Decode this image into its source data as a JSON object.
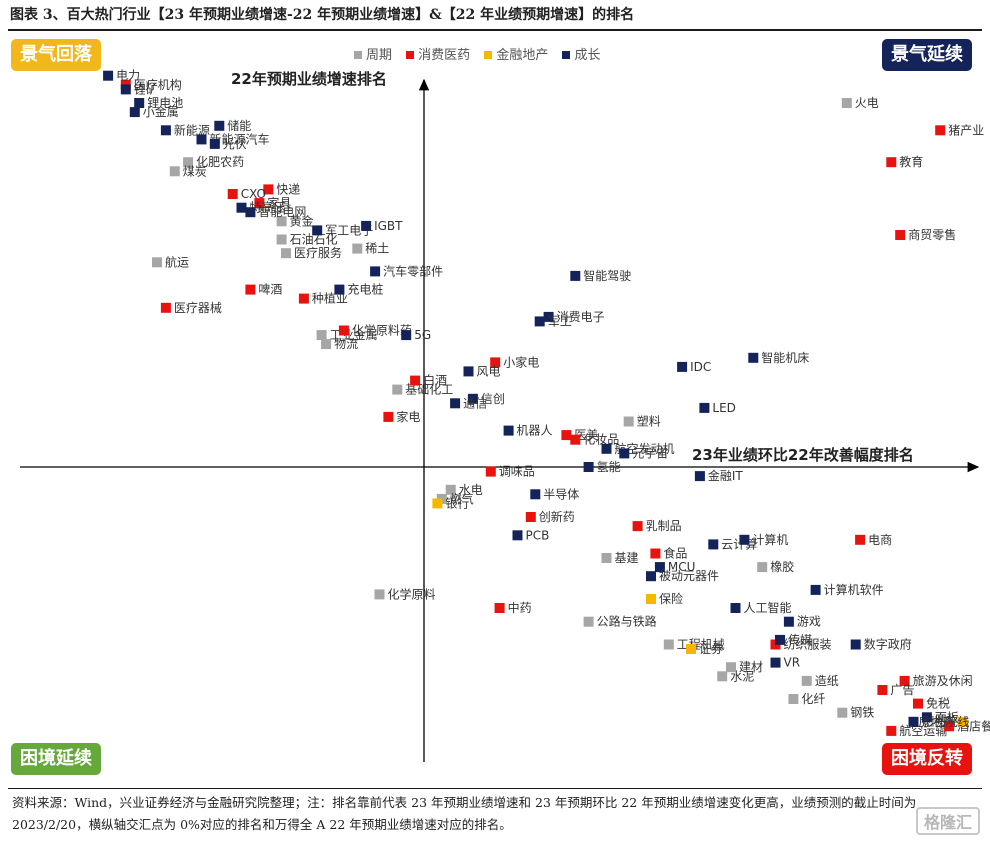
{
  "title": "图表 3、百大热门行业【23 年预期业绩增速-22 年预期业绩增速】&【22 年业绩预期增速】的排名",
  "quadrants": {
    "top_left": "景气回落",
    "top_right": "景气延续",
    "bottom_left": "困境延续",
    "bottom_right": "困境反转"
  },
  "legend": [
    {
      "name": "周期",
      "color": "#a6a6a6"
    },
    {
      "name": "消费医药",
      "color": "#e8130e"
    },
    {
      "name": "金融地产",
      "color": "#f5b800"
    },
    {
      "name": "成长",
      "color": "#14235a"
    }
  ],
  "footnote": "资料来源：Wind，兴业证券经济与金融研究院整理；注：排名靠前代表 23 年预期业绩增速和 23 年预期环比 22 年预期业绩增速变化更高，业绩预测的截止时间为 2023/2/20，横纵轴交汇点为 0%对应的排名和万得全 A 22 年预期业绩增速对应的排名。",
  "watermark": "格隆汇",
  "chart_data": {
    "type": "scatter",
    "title": "",
    "xlabel": "23年业绩环比22年改善幅度排名",
    "ylabel": "22年预期业绩增速排名",
    "xlim": [
      -100,
      130
    ],
    "ylim": [
      -100,
      100
    ],
    "grid": false,
    "legend_position": "top-center",
    "series": [
      {
        "name": "周期",
        "points": [
          {
            "label": "火电",
            "x": 95,
            "y": 80
          },
          {
            "label": "化肥农药",
            "x": -53,
            "y": 67
          },
          {
            "label": "煤炭",
            "x": -56,
            "y": 65
          },
          {
            "label": "黄金",
            "x": -32,
            "y": 54
          },
          {
            "label": "石油石化",
            "x": -32,
            "y": 50
          },
          {
            "label": "医疗服务",
            "x": -31,
            "y": 47
          },
          {
            "label": "稀土",
            "x": -15,
            "y": 48
          },
          {
            "label": "航运",
            "x": -60,
            "y": 45
          },
          {
            "label": "工业金属",
            "x": -23,
            "y": 29
          },
          {
            "label": "物流",
            "x": -22,
            "y": 27
          },
          {
            "label": "基础化工",
            "x": -6,
            "y": 17
          },
          {
            "label": "塑料",
            "x": 46,
            "y": 10
          },
          {
            "label": "水电",
            "x": 6,
            "y": -5
          },
          {
            "label": "燃气",
            "x": 4,
            "y": -7
          },
          {
            "label": "基建",
            "x": 41,
            "y": -20
          },
          {
            "label": "化学原料",
            "x": -10,
            "y": -28
          },
          {
            "label": "公路与铁路",
            "x": 37,
            "y": -34
          },
          {
            "label": "工程机械",
            "x": 55,
            "y": -39
          },
          {
            "label": "橡胶",
            "x": 76,
            "y": -22
          },
          {
            "label": "水泥",
            "x": 67,
            "y": -46
          },
          {
            "label": "建材",
            "x": 69,
            "y": -44
          },
          {
            "label": "造纸",
            "x": 86,
            "y": -47
          },
          {
            "label": "化纤",
            "x": 83,
            "y": -51
          },
          {
            "label": "钢铁",
            "x": 94,
            "y": -54
          }
        ]
      },
      {
        "name": "消费医药",
        "points": [
          {
            "label": "医疗机构",
            "x": -67,
            "y": 84
          },
          {
            "label": "猪产业",
            "x": 116,
            "y": 74
          },
          {
            "label": "教育",
            "x": 105,
            "y": 67
          },
          {
            "label": "快递",
            "x": -35,
            "y": 61
          },
          {
            "label": "CXO",
            "x": -43,
            "y": 60
          },
          {
            "label": "家具",
            "x": -37,
            "y": 58
          },
          {
            "label": "商贸零售",
            "x": 107,
            "y": 51
          },
          {
            "label": "啤酒",
            "x": -39,
            "y": 39
          },
          {
            "label": "种植业",
            "x": -27,
            "y": 37
          },
          {
            "label": "医疗器械",
            "x": -58,
            "y": 35
          },
          {
            "label": "化学原料药",
            "x": -18,
            "y": 30
          },
          {
            "label": "小家电",
            "x": 16,
            "y": 23
          },
          {
            "label": "白酒",
            "x": -2,
            "y": 19
          },
          {
            "label": "家电",
            "x": -8,
            "y": 11
          },
          {
            "label": "医美",
            "x": 32,
            "y": 7
          },
          {
            "label": "化妆品",
            "x": 34,
            "y": 6
          },
          {
            "label": "调味品",
            "x": 15,
            "y": -1
          },
          {
            "label": "创新药",
            "x": 24,
            "y": -11
          },
          {
            "label": "乳制品",
            "x": 48,
            "y": -13
          },
          {
            "label": "食品",
            "x": 52,
            "y": -19
          },
          {
            "label": "中药",
            "x": 17,
            "y": -31
          },
          {
            "label": "电商",
            "x": 98,
            "y": -16
          },
          {
            "label": "纺织服装",
            "x": 79,
            "y": -39
          },
          {
            "label": "旅游及休闲",
            "x": 108,
            "y": -47
          },
          {
            "label": "广告",
            "x": 103,
            "y": -49
          },
          {
            "label": "免税",
            "x": 111,
            "y": -52
          },
          {
            "label": "航空运输",
            "x": 105,
            "y": -58
          },
          {
            "label": "酒店餐饮",
            "x": 118,
            "y": -57
          }
        ]
      },
      {
        "name": "金融地产",
        "points": [
          {
            "label": "银行",
            "x": 3,
            "y": -8
          },
          {
            "label": "保险",
            "x": 51,
            "y": -29
          },
          {
            "label": "证券",
            "x": 60,
            "y": -40
          },
          {
            "label": "房地产",
            "x": 121,
            "y": -56
          }
        ]
      },
      {
        "name": "成长",
        "points": [
          {
            "label": "电力",
            "x": -71,
            "y": 86
          },
          {
            "label": "锂矿",
            "x": -67,
            "y": 83
          },
          {
            "label": "锂电池",
            "x": -64,
            "y": 80
          },
          {
            "label": "小金属",
            "x": -65,
            "y": 78
          },
          {
            "label": "储能",
            "x": -46,
            "y": 75
          },
          {
            "label": "新能源",
            "x": -58,
            "y": 74
          },
          {
            "label": "新能源汽车",
            "x": -50,
            "y": 72
          },
          {
            "label": "光伏",
            "x": -47,
            "y": 71
          },
          {
            "label": "特高压",
            "x": -41,
            "y": 57
          },
          {
            "label": "智能电网",
            "x": -39,
            "y": 56
          },
          {
            "label": "军工电子",
            "x": -24,
            "y": 52
          },
          {
            "label": "IGBT",
            "x": -13,
            "y": 53
          },
          {
            "label": "汽车零部件",
            "x": -11,
            "y": 43
          },
          {
            "label": "充电桩",
            "x": -19,
            "y": 39
          },
          {
            "label": "5G",
            "x": -4,
            "y": 29
          },
          {
            "label": "智能驾驶",
            "x": 34,
            "y": 42
          },
          {
            "label": "消费电子",
            "x": 28,
            "y": 33
          },
          {
            "label": "军工",
            "x": 26,
            "y": 32
          },
          {
            "label": "风电",
            "x": 10,
            "y": 21
          },
          {
            "label": "信创",
            "x": 11,
            "y": 15
          },
          {
            "label": "通信",
            "x": 7,
            "y": 14
          },
          {
            "label": "机器人",
            "x": 19,
            "y": 8
          },
          {
            "label": "IDC",
            "x": 58,
            "y": 22
          },
          {
            "label": "智能机床",
            "x": 74,
            "y": 24
          },
          {
            "label": "LED",
            "x": 63,
            "y": 13
          },
          {
            "label": "航空发动机",
            "x": 41,
            "y": 4
          },
          {
            "label": "元宇宙",
            "x": 45,
            "y": 3
          },
          {
            "label": "氢能",
            "x": 37,
            "y": 0
          },
          {
            "label": "金融IT",
            "x": 62,
            "y": -2
          },
          {
            "label": "半导体",
            "x": 25,
            "y": -6
          },
          {
            "label": "PCB",
            "x": 21,
            "y": -15
          },
          {
            "label": "云计算",
            "x": 65,
            "y": -17
          },
          {
            "label": "计算机",
            "x": 72,
            "y": -16
          },
          {
            "label": "MCU",
            "x": 53,
            "y": -22
          },
          {
            "label": "被动元器件",
            "x": 51,
            "y": -24
          },
          {
            "label": "人工智能",
            "x": 70,
            "y": -31
          },
          {
            "label": "计算机软件",
            "x": 88,
            "y": -27
          },
          {
            "label": "游戏",
            "x": 82,
            "y": -34
          },
          {
            "label": "数字政府",
            "x": 97,
            "y": -39
          },
          {
            "label": "传媒",
            "x": 80,
            "y": -38
          },
          {
            "label": "VR",
            "x": 79,
            "y": -43
          },
          {
            "label": "面板",
            "x": 113,
            "y": -55
          },
          {
            "label": "影视院线",
            "x": 110,
            "y": -56
          }
        ]
      }
    ]
  }
}
